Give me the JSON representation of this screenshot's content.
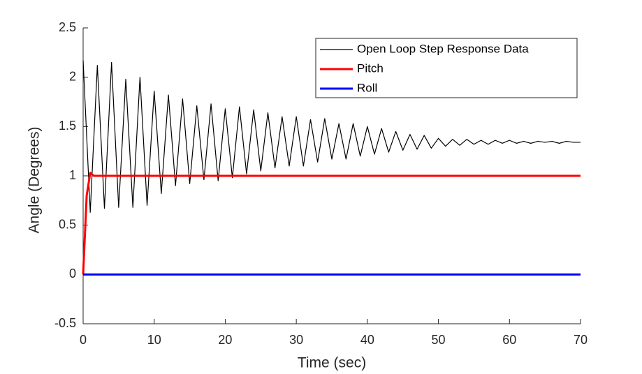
{
  "chart_data": {
    "type": "line",
    "xlabel": "Time (sec)",
    "ylabel": "Angle (Degrees)",
    "xlim": [
      0,
      70
    ],
    "xticks": [
      0,
      10,
      20,
      30,
      40,
      50,
      60,
      70
    ],
    "ylim": [
      -0.5,
      2.5
    ],
    "yticks": [
      -0.5,
      0,
      0.5,
      1,
      1.5,
      2,
      2.5
    ],
    "grid": false,
    "legend": "upper right",
    "series": [
      {
        "name": "Open Loop Step Response Data",
        "color": "#000000",
        "width": 1.2,
        "x": [
          0,
          1,
          2,
          3,
          4,
          5,
          6,
          7,
          8,
          9,
          10,
          11,
          12,
          13,
          14,
          15,
          16,
          17,
          18,
          19,
          20,
          21,
          22,
          23,
          24,
          25,
          26,
          27,
          28,
          29,
          30,
          31,
          32,
          33,
          34,
          35,
          36,
          37,
          38,
          39,
          40,
          41,
          42,
          43,
          44,
          45,
          46,
          47,
          48,
          49,
          50,
          51,
          52,
          53,
          54,
          55,
          56,
          57,
          58,
          59,
          60,
          61,
          62,
          63,
          64,
          65,
          66,
          67,
          68,
          69,
          70
        ],
        "values": [
          2.17,
          0.63,
          2.12,
          0.67,
          2.15,
          0.68,
          1.98,
          0.68,
          2.0,
          0.7,
          1.86,
          0.82,
          1.82,
          0.9,
          1.78,
          0.92,
          1.71,
          0.96,
          1.73,
          0.95,
          1.68,
          0.98,
          1.7,
          1.02,
          1.67,
          1.05,
          1.64,
          1.08,
          1.6,
          1.1,
          1.6,
          1.1,
          1.57,
          1.14,
          1.58,
          1.17,
          1.53,
          1.17,
          1.53,
          1.2,
          1.5,
          1.22,
          1.48,
          1.24,
          1.45,
          1.26,
          1.42,
          1.27,
          1.41,
          1.28,
          1.38,
          1.3,
          1.37,
          1.31,
          1.37,
          1.32,
          1.36,
          1.32,
          1.36,
          1.33,
          1.36,
          1.33,
          1.35,
          1.33,
          1.35,
          1.34,
          1.35,
          1.33,
          1.35,
          1.34,
          1.34
        ]
      },
      {
        "name": "Pitch",
        "color": "#ff0000",
        "width": 3,
        "x": [
          0,
          0.5,
          1,
          1.5,
          2,
          70
        ],
        "values": [
          0,
          0.8,
          1.03,
          1.0,
          1.0,
          1.0
        ]
      },
      {
        "name": "Roll",
        "color": "#0000ff",
        "width": 3,
        "x": [
          0,
          70
        ],
        "values": [
          0,
          0
        ]
      }
    ]
  }
}
